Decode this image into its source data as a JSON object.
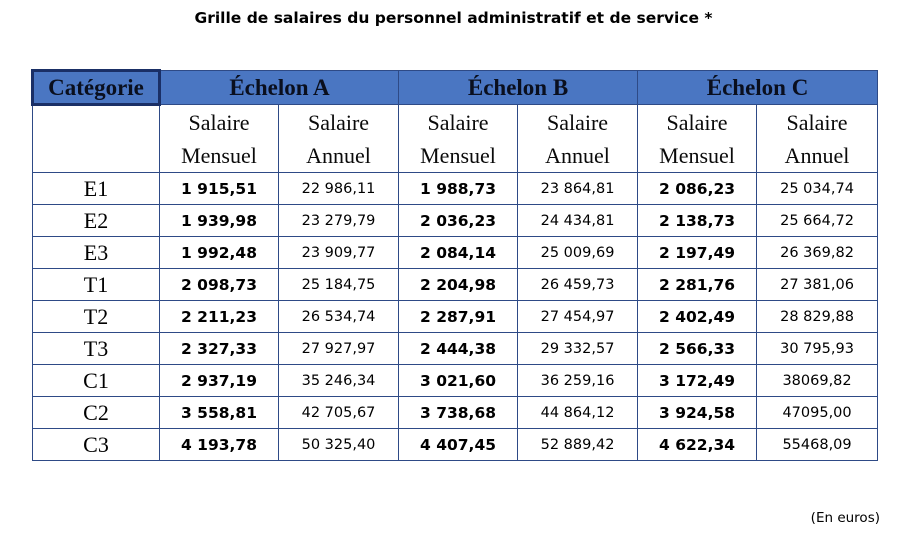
{
  "title": "Grille de salaires du personnel administratif et de service *",
  "table": {
    "category_header": "Catégorie",
    "echelons": [
      "Échelon A",
      "Échelon B",
      "Échelon C"
    ],
    "sub_headers": {
      "monthly_1": "Salaire",
      "monthly_2": "Mensuel",
      "annual_1": "Salaire",
      "annual_2": "Annuel"
    },
    "rows": [
      {
        "cat": "E1",
        "a_m": "1 915,51",
        "a_a": "22 986,11",
        "b_m": "1 988,73",
        "b_a": "23 864,81",
        "c_m": "2 086,23",
        "c_a": "25 034,74"
      },
      {
        "cat": "E2",
        "a_m": "1 939,98",
        "a_a": "23 279,79",
        "b_m": "2 036,23",
        "b_a": "24 434,81",
        "c_m": "2 138,73",
        "c_a": "25 664,72"
      },
      {
        "cat": "E3",
        "a_m": "1 992,48",
        "a_a": "23 909,77",
        "b_m": "2 084,14",
        "b_a": "25 009,69",
        "c_m": "2 197,49",
        "c_a": "26 369,82"
      },
      {
        "cat": "T1",
        "a_m": "2 098,73",
        "a_a": "25 184,75",
        "b_m": "2 204,98",
        "b_a": "26 459,73",
        "c_m": "2 281,76",
        "c_a": "27 381,06"
      },
      {
        "cat": "T2",
        "a_m": "2 211,23",
        "a_a": "26 534,74",
        "b_m": "2 287,91",
        "b_a": "27 454,97",
        "c_m": "2 402,49",
        "c_a": "28 829,88"
      },
      {
        "cat": "T3",
        "a_m": "2 327,33",
        "a_a": "27 927,97",
        "b_m": "2 444,38",
        "b_a": "29 332,57",
        "c_m": "2 566,33",
        "c_a": "30 795,93"
      },
      {
        "cat": "C1",
        "a_m": "2 937,19",
        "a_a": "35 246,34",
        "b_m": "3 021,60",
        "b_a": "36 259,16",
        "c_m": "3 172,49",
        "c_a": "38069,82"
      },
      {
        "cat": "C2",
        "a_m": "3 558,81",
        "a_a": "42 705,67",
        "b_m": "3 738,68",
        "b_a": "44 864,12",
        "c_m": "3 924,58",
        "c_a": "47095,00"
      },
      {
        "cat": "C3",
        "a_m": "4 193,78",
        "a_a": "50 325,40",
        "b_m": "4 407,45",
        "b_a": "52 889,42",
        "c_m": "4 622,34",
        "c_a": "55468,09"
      }
    ]
  },
  "footnote": "(En euros)",
  "colors": {
    "header_bg": "#4a76c2",
    "border": "#2e4a86"
  }
}
